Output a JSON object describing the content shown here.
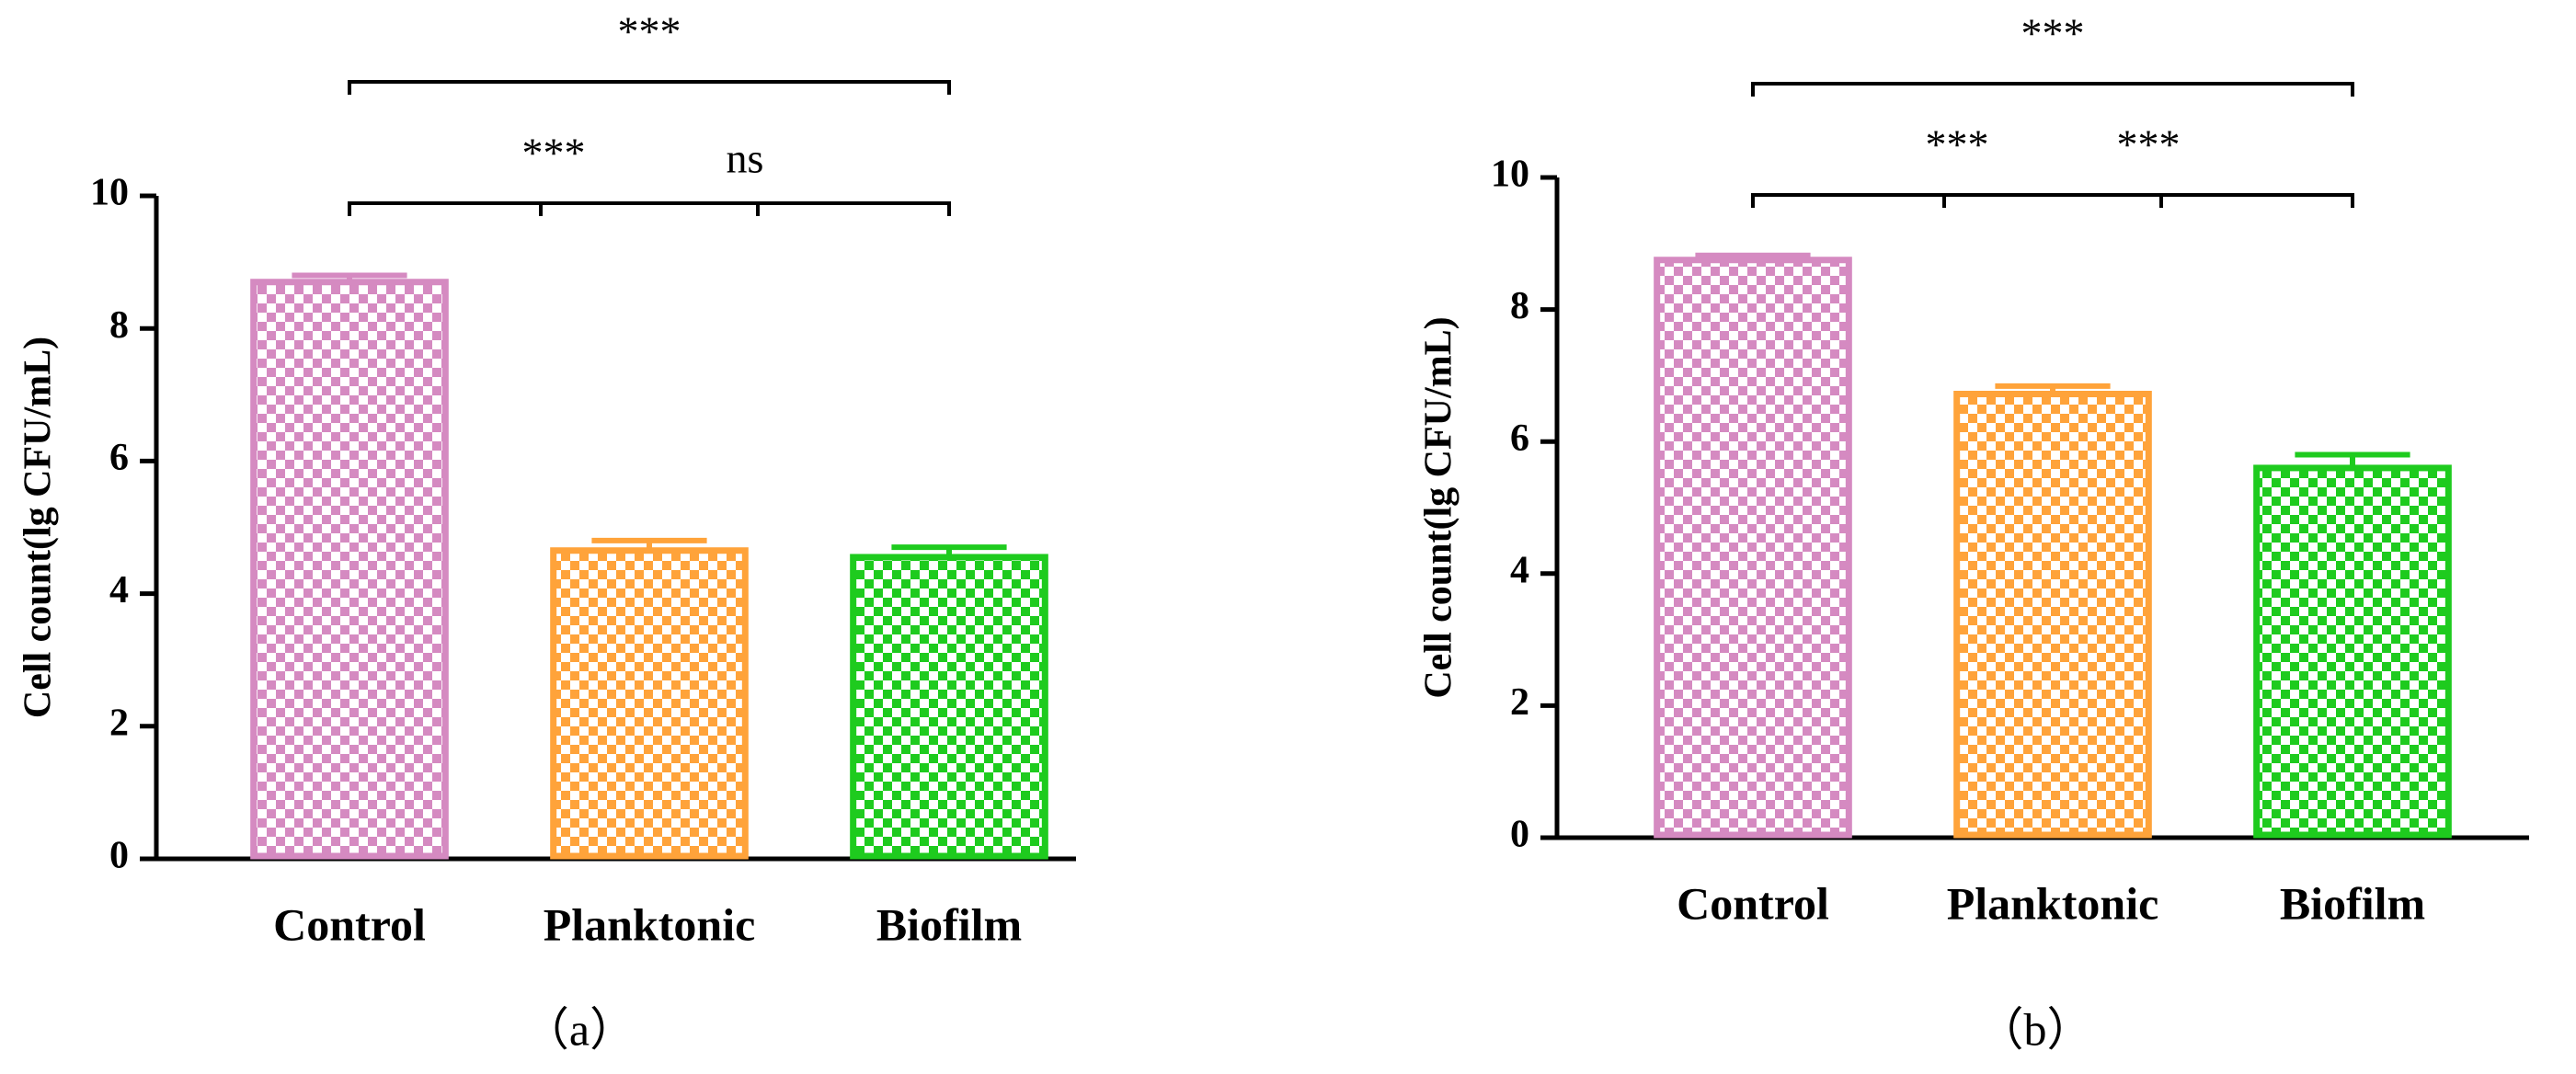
{
  "chart_data": [
    {
      "type": "bar",
      "ylabel": "Cell count(lg CFU/mL)",
      "caption": "（a）",
      "categories": [
        "Control",
        "Planktonic",
        "Biofilm"
      ],
      "values": [
        8.7,
        4.65,
        4.55
      ],
      "errors": [
        0.1,
        0.15,
        0.15
      ],
      "colors": [
        "#d58ac1",
        "#ffa33a",
        "#1ecb1e"
      ],
      "ylim": [
        0,
        10
      ],
      "yticks": [
        0,
        2,
        4,
        6,
        8,
        10
      ],
      "significance": [
        {
          "label": "***",
          "from": 0,
          "to": 1
        },
        {
          "label": "ns",
          "from": 1,
          "to": 2
        },
        {
          "label": "***",
          "from": 0,
          "to": 2
        }
      ]
    },
    {
      "type": "bar",
      "ylabel": "Cell count(lg CFU/mL)",
      "caption": "（b）",
      "categories": [
        "Control",
        "Planktonic",
        "Biofilm"
      ],
      "values": [
        8.75,
        6.72,
        5.6
      ],
      "errors": [
        0.07,
        0.12,
        0.2
      ],
      "colors": [
        "#d58ac1",
        "#ffa33a",
        "#1ecb1e"
      ],
      "ylim": [
        0,
        10
      ],
      "yticks": [
        0,
        2,
        4,
        6,
        8,
        10
      ],
      "significance": [
        {
          "label": "***",
          "from": 0,
          "to": 1
        },
        {
          "label": "***",
          "from": 1,
          "to": 2
        },
        {
          "label": "***",
          "from": 0,
          "to": 2
        }
      ]
    }
  ]
}
